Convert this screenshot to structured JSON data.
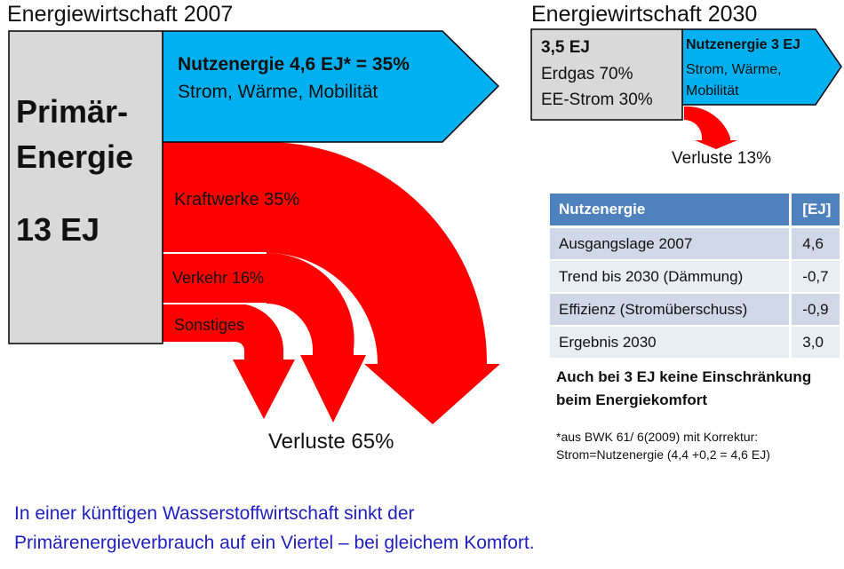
{
  "y2007": {
    "title": "Energiewirtschaft 2007",
    "primary": {
      "line1": "Primär-",
      "line2": "Energie",
      "value": "13 EJ"
    },
    "useful": {
      "line1": "Nutzenergie 4,6 EJ* = 35%",
      "line2": "Strom, Wärme, Mobilität"
    },
    "flows": {
      "kraftwerke": "Kraftwerke 35%",
      "verkehr": "Verkehr 16%",
      "sonstiges": "Sonstiges"
    },
    "losses": "Verluste 65%"
  },
  "y2030": {
    "title": "Energiewirtschaft 2030",
    "primary": {
      "line1": "3,5 EJ",
      "line2": "Erdgas 70%",
      "line3": "EE-Strom 30%"
    },
    "useful": {
      "line1": "Nutzenergie 3 EJ",
      "line2": "Strom, Wärme,",
      "line3": "Mobilität"
    },
    "losses": "Verluste 13%"
  },
  "table": {
    "headers": [
      "Nutzenergie",
      "[EJ]"
    ],
    "rows": [
      [
        "Ausgangslage 2007",
        "4,6"
      ],
      [
        "Trend bis 2030 (Dämmung)",
        "-0,7"
      ],
      [
        "Effizienz (Stromüberschuss)",
        "-0,9"
      ],
      [
        "Ergebnis 2030",
        "3,0"
      ]
    ]
  },
  "conclusion": {
    "line1": "Auch bei 3 EJ keine Einschränkung",
    "line2": "beim Energiekomfort"
  },
  "footnote": {
    "line1": "*aus  BWK 61/ 6(2009) mit Korrektur:",
    "line2": "Strom=Nutzenergie (4,4 +0,2 = 4,6 EJ)"
  },
  "bottom": {
    "line1": "In einer künftigen Wasserstoffwirtschaft sinkt der",
    "line2": "Primärenergieverbrauch auf ein Viertel – bei gleichem Komfort."
  },
  "colors": {
    "loss_red": "#ff0000",
    "useful_blue": "#00b0f0",
    "primary_gray": "#d9d9d9",
    "table_header": "#4f81bd",
    "footer_text": "#1f1fbf"
  }
}
